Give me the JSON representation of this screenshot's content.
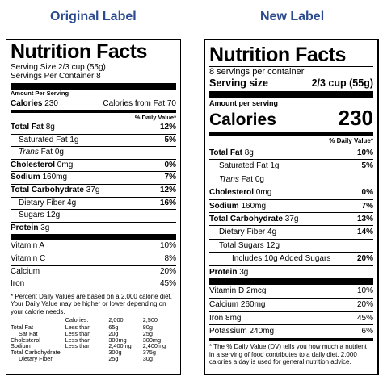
{
  "headings": {
    "original": "Original Label",
    "new": "New Label"
  },
  "original": {
    "title": "Nutrition Facts",
    "serving_size": "Serving Size 2/3 cup (55g)",
    "servings_per_container": "Servings Per Container 8",
    "amount_per_serving": "Amount Per Serving",
    "calories_label": "Calories",
    "calories_value": "230",
    "calories_from_fat": "Calories from Fat 70",
    "daily_value_header": "% Daily Value*",
    "nutrients": [
      {
        "bold": "Total Fat",
        "amount": "8g",
        "dv": "12%"
      },
      {
        "plain": "Saturated Fat",
        "amount": "1g",
        "dv": "5%"
      },
      {
        "italic": "Trans",
        "plain": "Fat",
        "amount": "0g",
        "dv": ""
      },
      {
        "bold": "Cholesterol",
        "amount": "0mg",
        "dv": "0%"
      },
      {
        "bold": "Sodium",
        "amount": "160mg",
        "dv": "7%"
      },
      {
        "bold": "Total Carbohydrate",
        "amount": "37g",
        "dv": "12%"
      },
      {
        "plain": "Dietary Fiber",
        "amount": "4g",
        "dv": "16%"
      },
      {
        "plain": "Sugars",
        "amount": "12g",
        "dv": ""
      },
      {
        "bold": "Protein",
        "amount": "3g",
        "dv": ""
      }
    ],
    "vitamins": [
      {
        "name": "Vitamin A",
        "dv": "10%"
      },
      {
        "name": "Vitamin C",
        "dv": "8%"
      },
      {
        "name": "Calcium",
        "dv": "20%"
      },
      {
        "name": "Iron",
        "dv": "45%"
      }
    ],
    "footnote": "* Percent Daily Values are based on a 2,000 calorie diet. Your Daily Value may be higher or lower depending on your calorie needs.",
    "footnote_table": {
      "header": [
        "",
        "Calories:",
        "2,000",
        "2,500"
      ],
      "rows": [
        [
          "Total Fat",
          "Less than",
          "65g",
          "80g"
        ],
        [
          "Sat Fat",
          "Less than",
          "20g",
          "25g"
        ],
        [
          "Cholesterol",
          "Less than",
          "300mg",
          "300mg"
        ],
        [
          "Sodium",
          "Less than",
          "2,400mg",
          "2,400mg"
        ],
        [
          "Total Carbohydrate",
          "",
          "300g",
          "375g"
        ],
        [
          "Dietary Fiber",
          "",
          "25g",
          "30g"
        ]
      ]
    }
  },
  "new": {
    "title": "Nutrition Facts",
    "servings_per_container": "8 servings per container",
    "serving_size_label": "Serving size",
    "serving_size_value": "2/3 cup (55g)",
    "amount_per_serving": "Amount per serving",
    "calories_label": "Calories",
    "calories_value": "230",
    "daily_value_header": "% Daily Value*",
    "nutrients": [
      {
        "bold": "Total Fat",
        "amount": "8g",
        "dv": "10%"
      },
      {
        "plain": "Saturated Fat",
        "amount": "1g",
        "dv": "5%"
      },
      {
        "italic": "Trans",
        "plain": "Fat",
        "amount": "0g",
        "dv": ""
      },
      {
        "bold": "Cholesterol",
        "amount": "0mg",
        "dv": "0%"
      },
      {
        "bold": "Sodium",
        "amount": "160mg",
        "dv": "7%"
      },
      {
        "bold": "Total Carbohydrate",
        "amount": "37g",
        "dv": "13%"
      },
      {
        "plain": "Dietary Fiber",
        "amount": "4g",
        "dv": "14%"
      },
      {
        "plain": "Total Sugars",
        "amount": "12g",
        "dv": ""
      },
      {
        "plain": "Includes 10g Added Sugars",
        "amount": "",
        "dv": "20%"
      },
      {
        "bold": "Protein",
        "amount": "3g",
        "dv": ""
      }
    ],
    "vitamins": [
      {
        "name": "Vitamin D 2mcg",
        "dv": "10%"
      },
      {
        "name": "Calcium 260mg",
        "dv": "20%"
      },
      {
        "name": "Iron 8mg",
        "dv": "45%"
      },
      {
        "name": "Potassium 240mg",
        "dv": "6%"
      }
    ],
    "footnote": "* The % Daily Value (DV) tells you how much a nutrient in a serving of food contributes to a daily diet. 2,000 calories a day is used for general nutrition advice."
  }
}
